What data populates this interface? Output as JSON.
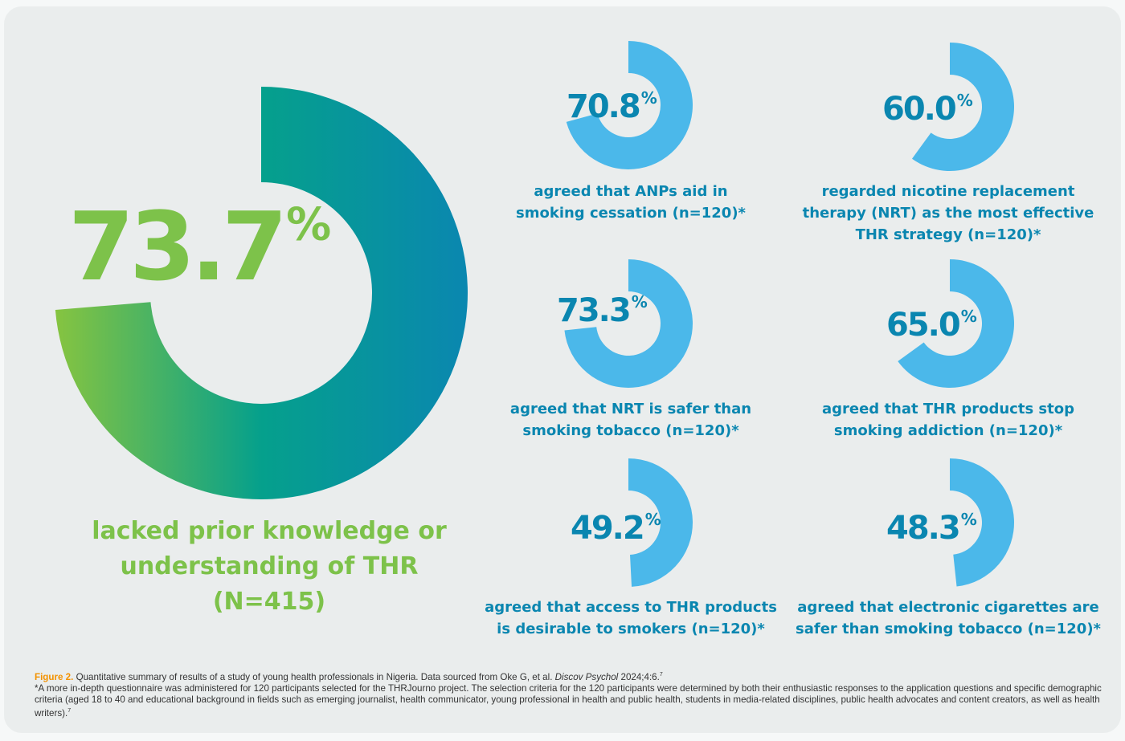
{
  "colors": {
    "accent_green": "#7dc24a",
    "accent_teal": "#02998f",
    "accent_blue": "#0a86b0",
    "donut_light_blue": "#4bb8ea",
    "figure_label_orange": "#f39200"
  },
  "chart_data": [
    {
      "type": "pie",
      "style": "donut",
      "values": [
        73.7
      ],
      "label": "73.7",
      "unit": "%",
      "caption": "lacked prior knowledge or understanding of THR (N=415)"
    },
    {
      "type": "pie",
      "style": "donut",
      "values": [
        70.8
      ],
      "label": "70.8",
      "unit": "%",
      "caption": "agreed that ANPs aid in smoking cessation (n=120)*"
    },
    {
      "type": "pie",
      "style": "donut",
      "values": [
        60.0
      ],
      "label": "60.0",
      "unit": "%",
      "caption": "regarded nicotine replacement therapy (NRT) as the most effective THR strategy (n=120)*"
    },
    {
      "type": "pie",
      "style": "donut",
      "values": [
        73.3
      ],
      "label": "73.3",
      "unit": "%",
      "caption": "agreed that NRT is safer than smoking tobacco (n=120)*"
    },
    {
      "type": "pie",
      "style": "donut",
      "values": [
        65.0
      ],
      "label": "65.0",
      "unit": "%",
      "caption": "agreed that THR products stop smoking addiction (n=120)*"
    },
    {
      "type": "pie",
      "style": "donut",
      "values": [
        49.2
      ],
      "label": "49.2",
      "unit": "%",
      "caption": "agreed that access to THR products is desirable to smokers (n=120)*"
    },
    {
      "type": "pie",
      "style": "donut",
      "values": [
        48.3
      ],
      "label": "48.3",
      "unit": "%",
      "caption": "agreed that electronic cigarettes are safer than smoking tobacco (n=120)*"
    }
  ],
  "captions": {
    "main": [
      "lacked prior knowledge or",
      "understanding of THR",
      "(N=415)"
    ],
    "c1": [
      "agreed that ANPs aid in",
      "smoking cessation (n=120)*"
    ],
    "c2": [
      "regarded nicotine replacement",
      "therapy (NRT) as the most effective",
      "THR strategy (n=120)*"
    ],
    "c3": [
      "agreed that NRT is safer than",
      "smoking tobacco (n=120)*"
    ],
    "c4": [
      "agreed that THR products stop",
      "smoking addiction (n=120)*"
    ],
    "c5": [
      "agreed that access to THR products",
      "is desirable to smokers (n=120)*"
    ],
    "c6": [
      "agreed that electronic cigarettes are",
      "safer than smoking tobacco (n=120)*"
    ]
  },
  "footnote": {
    "label": "Figure 2.",
    "text_before_italic": "Quantitative summary of results of a study of young health professionals in Nigeria. Data sourced from Oke G, et al.",
    "italic_source": "Discov Psychol",
    "text_after_italic": "2024;4:6.",
    "ref": "7",
    "note": "*A more in-depth questionnaire was administered for 120 participants selected for the THRJourno project. The selection criteria for the 120 participants were determined by both their enthusiastic responses to the application questions and specific demographic criteria (aged 18 to 40 and educational background in fields such as emerging journalist, health communicator, young professional in health and public health, students in media-related disciplines, public health advocates and content creators, as well as health writers).",
    "note_ref": "7"
  }
}
